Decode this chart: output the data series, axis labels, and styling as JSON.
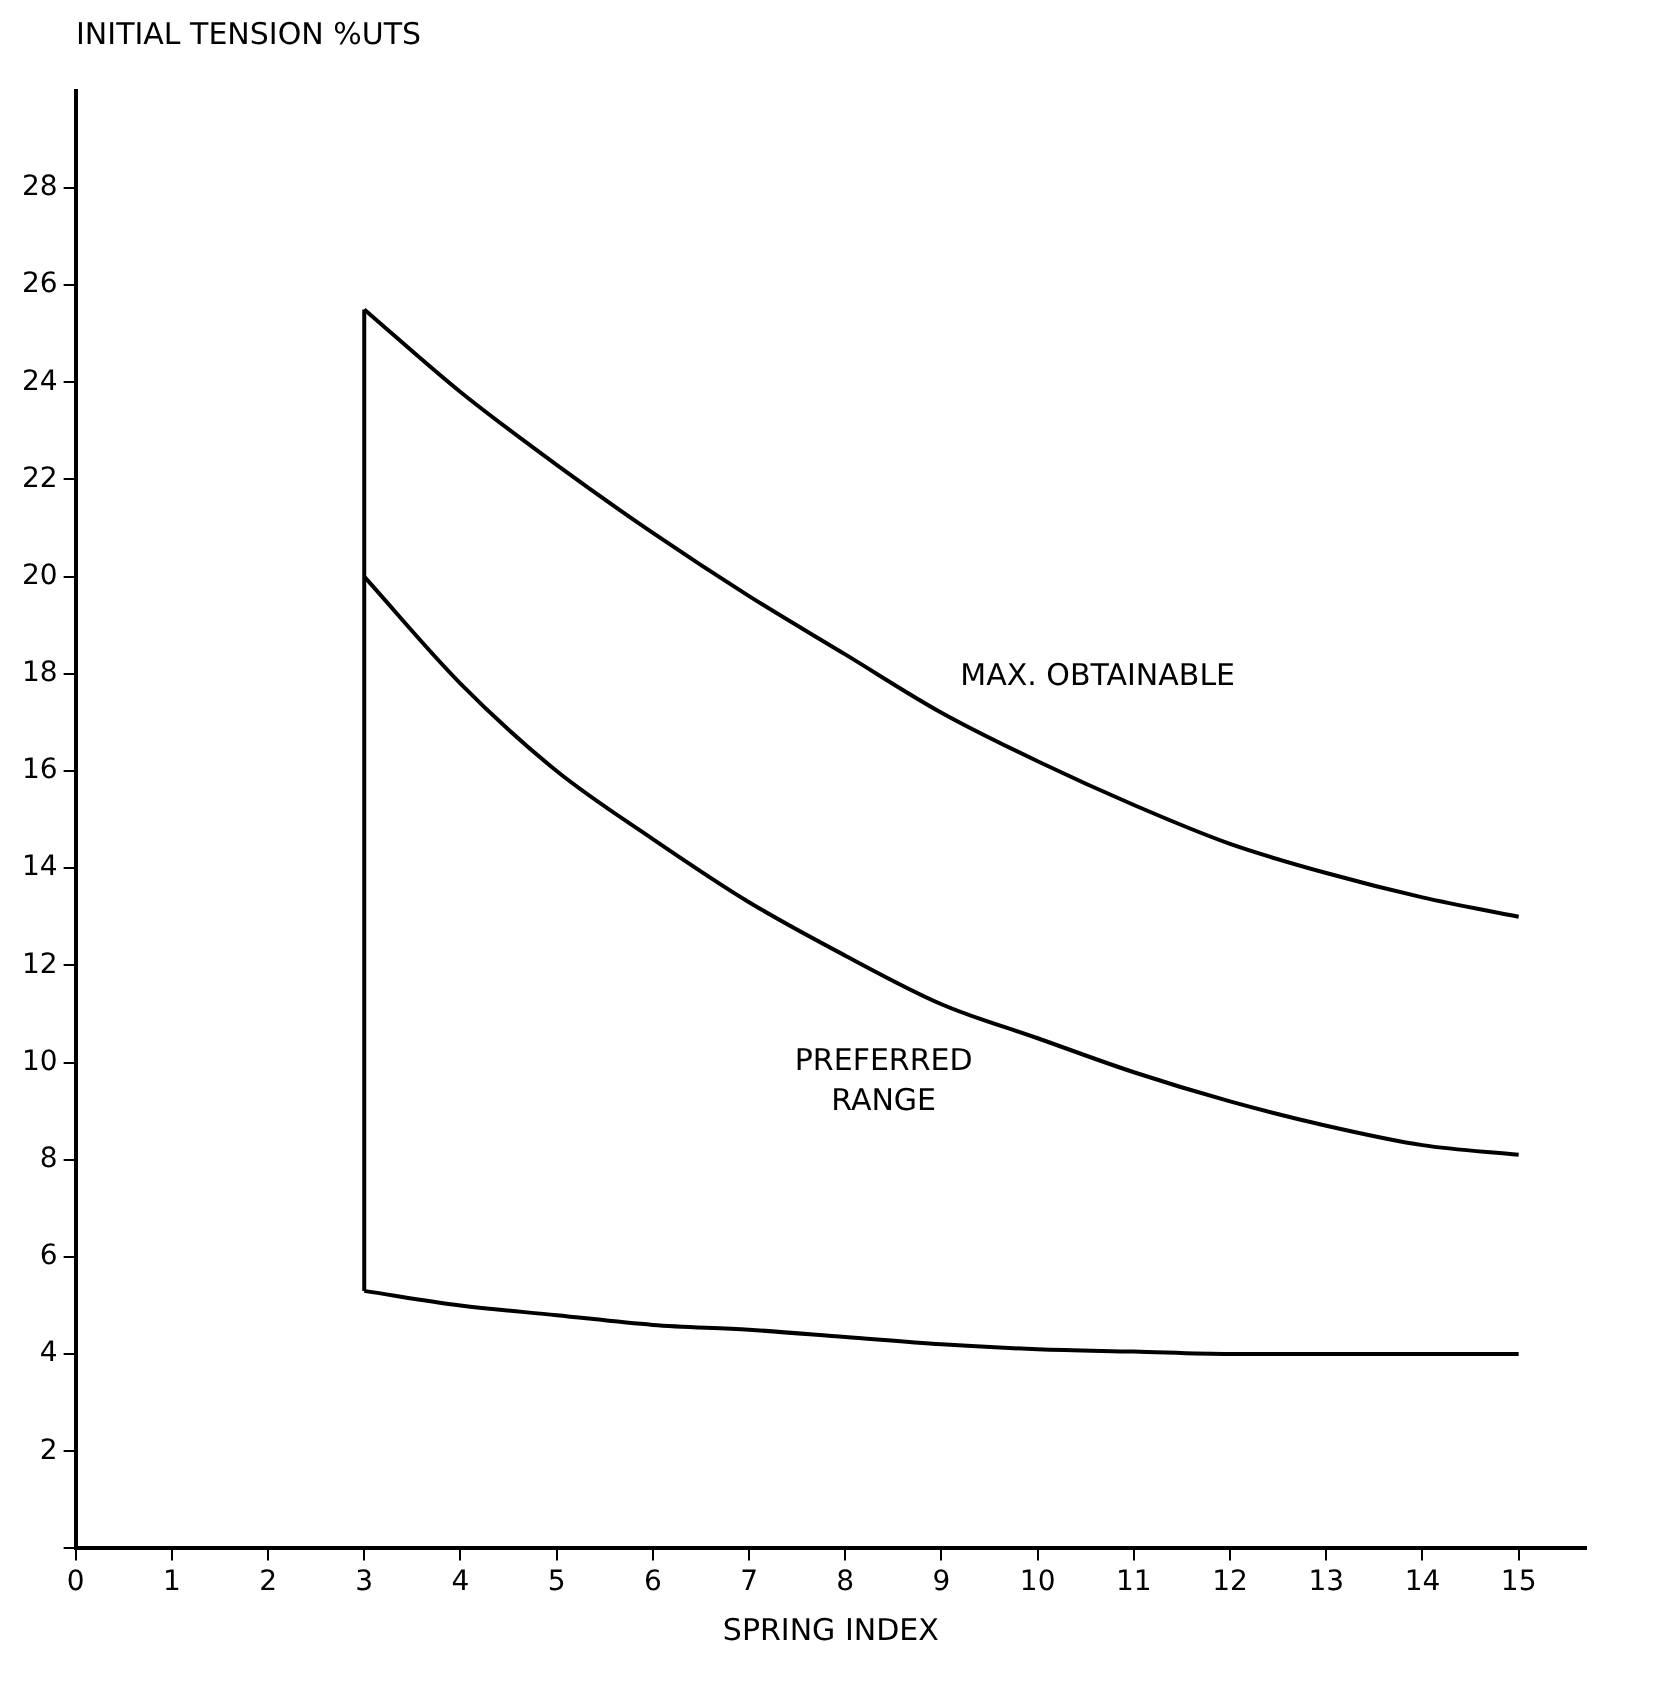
{
  "chart_data": {
    "type": "line",
    "xlabel": "SPRING INDEX",
    "ylabel": "INITIAL TENSION %UTS",
    "x": [
      3,
      4,
      5,
      6,
      7,
      8,
      9,
      10,
      11,
      12,
      13,
      14,
      15
    ],
    "series": [
      {
        "name": "MAX. OBTAINABLE",
        "color": "#000000",
        "values": [
          25.5,
          23.8,
          22.3,
          20.9,
          19.6,
          18.4,
          17.2,
          16.2,
          15.3,
          14.5,
          13.9,
          13.4,
          13.0
        ]
      },
      {
        "color": "#000000",
        "values": [
          20.0,
          17.8,
          16.0,
          14.6,
          13.3,
          12.2,
          11.2,
          10.5,
          9.8,
          9.2,
          8.7,
          8.3,
          8.1
        ]
      },
      {
        "color": "#000000",
        "values": [
          5.3,
          5.0,
          4.8,
          4.6,
          4.5,
          4.35,
          4.2,
          4.1,
          4.05,
          4.0,
          4.0,
          4.0,
          4.0
        ]
      },
      {
        "color": "#000000",
        "x": [
          3,
          3
        ],
        "values": [
          5.3,
          25.5
        ]
      }
    ],
    "annotations": [
      "PREFERRED RANGE"
    ],
    "xlim": [
      0,
      15.7
    ],
    "ylim": [
      0,
      30
    ],
    "xticks": [
      0,
      1,
      2,
      3,
      4,
      5,
      6,
      7,
      8,
      9,
      10,
      11,
      12,
      13,
      14,
      15
    ],
    "yticks": [
      {
        "value": 0,
        "label": null
      },
      2,
      4,
      6,
      8,
      10,
      12,
      14,
      16,
      18,
      20,
      22,
      24,
      26,
      28
    ],
    "grid": false,
    "legend": false,
    "marker": "none",
    "line_style": "solid"
  }
}
